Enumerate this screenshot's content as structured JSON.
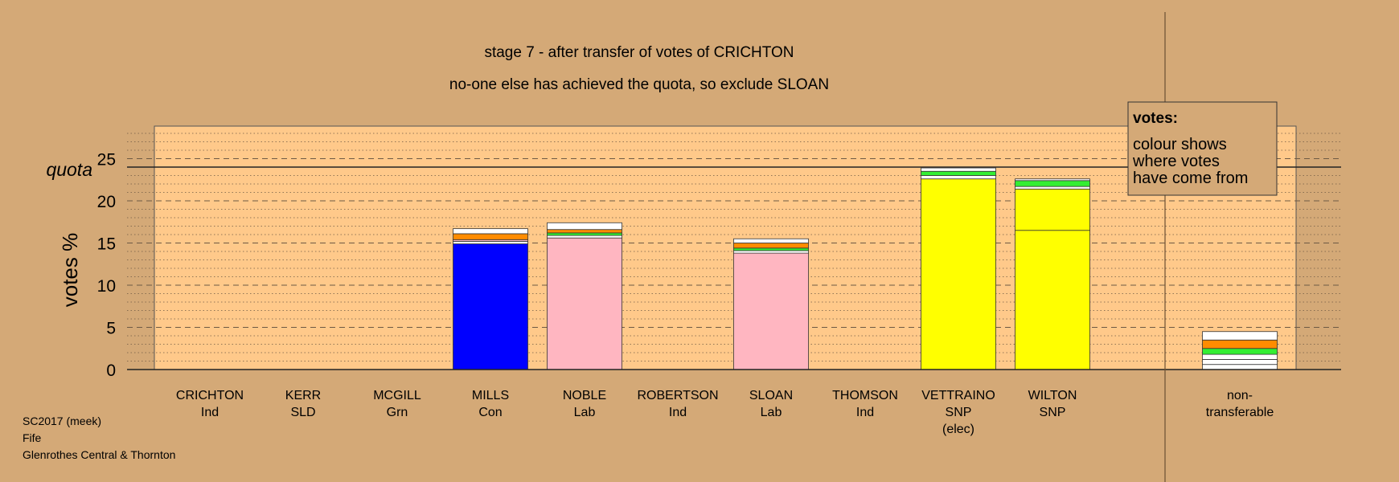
{
  "chart_data": {
    "type": "bar",
    "stacked": true,
    "title": "stage 7 - after transfer of votes of CRICHTON",
    "subtitle": "no-one else has achieved the quota, so exclude SLOAN",
    "ylabel": "votes %",
    "xlabel": "",
    "ylim": [
      0,
      28
    ],
    "yticks": [
      0,
      5,
      10,
      15,
      20,
      25
    ],
    "quota": {
      "label": "quota",
      "value": 24
    },
    "grid": true,
    "legend": {
      "title": "votes:",
      "lines": [
        "colour shows",
        "where votes",
        "have come from"
      ],
      "placement": "top-right"
    },
    "footer": [
      "SC2017 (meek)",
      "Fife",
      "Glenrothes Central & Thornton"
    ],
    "candidates": [
      {
        "name": "CRICHTON",
        "party": "Ind",
        "note": "",
        "segments": []
      },
      {
        "name": "KERR",
        "party": "SLD",
        "note": "",
        "segments": []
      },
      {
        "name": "MCGILL",
        "party": "Grn",
        "note": "",
        "segments": []
      },
      {
        "name": "MILLS",
        "party": "Con",
        "note": "",
        "segments": [
          {
            "color": "#0000ff",
            "value": 14.9
          },
          {
            "color": "#ffffff",
            "value": 0.3
          },
          {
            "color": "#ffb6c1",
            "value": 0.2
          },
          {
            "color": "#ff8c00",
            "value": 0.7
          },
          {
            "color": "#ffffff",
            "value": 0.6
          }
        ]
      },
      {
        "name": "NOBLE",
        "party": "Lab",
        "note": "",
        "segments": [
          {
            "color": "#ffb6c1",
            "value": 15.6
          },
          {
            "color": "#ffffff",
            "value": 0.3
          },
          {
            "color": "#33ee33",
            "value": 0.3
          },
          {
            "color": "#ff8c00",
            "value": 0.4
          },
          {
            "color": "#ffffff",
            "value": 0.8
          }
        ]
      },
      {
        "name": "ROBERTSON",
        "party": "Ind",
        "note": "",
        "segments": []
      },
      {
        "name": "SLOAN",
        "party": "Lab",
        "note": "",
        "segments": [
          {
            "color": "#ffb6c1",
            "value": 13.8
          },
          {
            "color": "#ffffff",
            "value": 0.3
          },
          {
            "color": "#33ee33",
            "value": 0.3
          },
          {
            "color": "#ff8c00",
            "value": 0.6
          },
          {
            "color": "#ffffff",
            "value": 0.5
          }
        ]
      },
      {
        "name": "THOMSON",
        "party": "Ind",
        "note": "",
        "segments": []
      },
      {
        "name": "VETTRAINO",
        "party": "SNP",
        "note": "(elec)",
        "segments": [
          {
            "color": "#ffff00",
            "value": 22.6
          },
          {
            "color": "#ffffff",
            "value": 0.4
          },
          {
            "color": "#33ee33",
            "value": 0.5
          },
          {
            "color": "#ffffff",
            "value": 0.4
          }
        ]
      },
      {
        "name": "WILTON",
        "party": "SNP",
        "note": "",
        "segments": [
          {
            "color": "#ffff00",
            "value": 16.5
          },
          {
            "color": "#ffff00",
            "value": 4.9
          },
          {
            "color": "#ffffff",
            "value": 0.3
          },
          {
            "color": "#33ee33",
            "value": 0.7
          },
          {
            "color": "#ffffff",
            "value": 0.2
          }
        ]
      }
    ],
    "nontransferable": {
      "label_lines": [
        "non-",
        "transferable"
      ],
      "segments": [
        {
          "color": "#ffffff",
          "value": 0.6
        },
        {
          "color": "#ffffff",
          "value": 0.6
        },
        {
          "color": "#ffffff",
          "value": 0.6
        },
        {
          "color": "#33ee33",
          "value": 0.7
        },
        {
          "color": "#ff8c00",
          "value": 1.0
        },
        {
          "color": "#ffffff",
          "value": 1.0
        }
      ]
    },
    "colors": {
      "background": "#d4a977",
      "plot_area": "#ffc98a",
      "grid": "#6e5a44",
      "axis": "#222222"
    }
  }
}
